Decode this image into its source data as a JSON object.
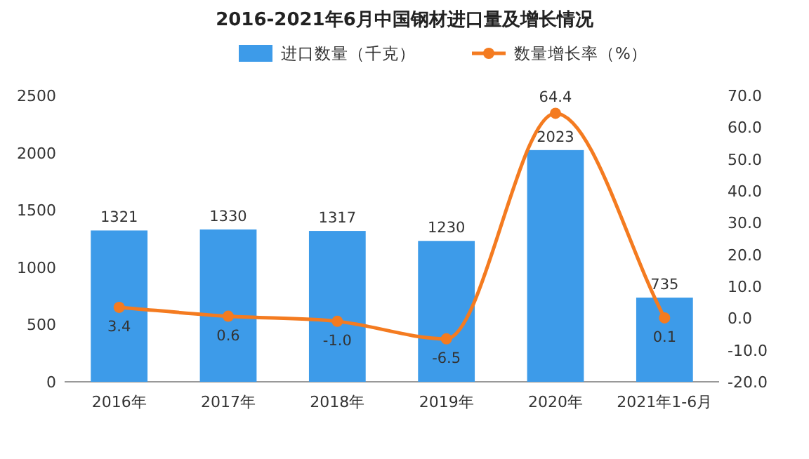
{
  "chart_data": {
    "type": "bar",
    "title": "2016-2021年6月中国钢材进口量及增长情况",
    "categories": [
      "2016年",
      "2017年",
      "2018年",
      "2019年",
      "2020年",
      "2021年1-6月"
    ],
    "series": [
      {
        "name": "进口数量（千克）",
        "color": "#3d9be9",
        "values": [
          1321,
          1330,
          1317,
          1230,
          2023,
          735
        ]
      },
      {
        "name": "数量增长率（%）",
        "type": "line",
        "axis": "y2",
        "marker": "circle",
        "color": "#f47b20",
        "values": [
          3.4,
          0.6,
          -1.0,
          -6.5,
          64.4,
          0.1
        ],
        "value_labels": [
          "3.4",
          "0.6",
          "-1.0",
          "-6.5",
          "64.4",
          "0.1"
        ]
      }
    ],
    "ylim": [
      0,
      2500
    ],
    "yticks": [
      0,
      500,
      1000,
      1500,
      2000,
      2500
    ],
    "y2lim": [
      -20,
      70
    ],
    "y2ticks": [
      {
        "value": -20,
        "label": "-20.0"
      },
      {
        "value": -10,
        "label": "-10.0"
      },
      {
        "value": 0,
        "label": "0.0"
      },
      {
        "value": 10,
        "label": "10.0"
      },
      {
        "value": 20,
        "label": "20.0"
      },
      {
        "value": 30,
        "label": "30.0"
      },
      {
        "value": 40,
        "label": "40.0"
      },
      {
        "value": 50,
        "label": "50.0"
      },
      {
        "value": 60,
        "label": "60.0"
      },
      {
        "value": 70,
        "label": "70.0"
      }
    ],
    "legend": "top",
    "data_labels": true
  }
}
